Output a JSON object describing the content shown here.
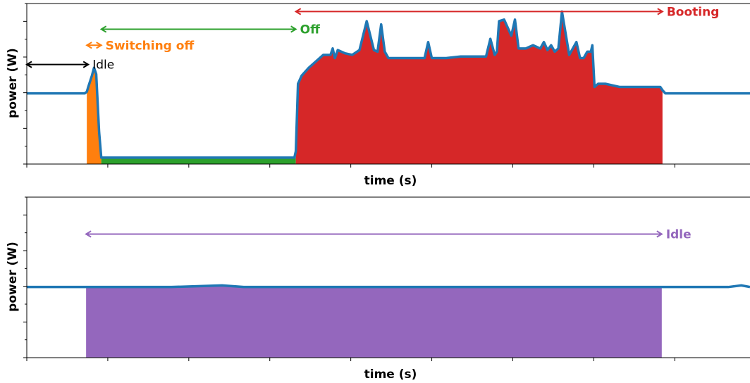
{
  "chart_data": [
    {
      "type": "line",
      "xlabel": "time (s)",
      "ylabel": "power (W)",
      "xlim": [
        0,
        100
      ],
      "ylim": [
        0,
        100
      ],
      "line_color": "#1f77b4",
      "series": [
        {
          "x": [
            0,
            2,
            4,
            6,
            8,
            8.3,
            8.5,
            9.0,
            9.3,
            9.6,
            10.0,
            10.3,
            12,
            20,
            30,
            37,
            37.2,
            37.5,
            38,
            39,
            40,
            41,
            42,
            42.3,
            42.6,
            43,
            44,
            45,
            46,
            47,
            48,
            48.5,
            49,
            49.5,
            50,
            52,
            55,
            55.5,
            56,
            58,
            60,
            62,
            63.5,
            64.1,
            64.7,
            65,
            65.3,
            66,
            67,
            67.5,
            68,
            69,
            70,
            71,
            71.5,
            72,
            72.5,
            73,
            73.5,
            74,
            75,
            75.5,
            76,
            76.5,
            77,
            77.5,
            78,
            78.2,
            78.5,
            79,
            80,
            82,
            84,
            86,
            87.6,
            87.9,
            88.3,
            89,
            92,
            95,
            98,
            100
          ],
          "y": [
            44,
            44,
            44,
            44,
            44,
            45,
            48,
            55,
            60,
            56,
            20,
            4,
            4,
            4,
            4,
            4,
            8,
            50,
            55,
            60,
            64,
            68,
            68,
            72,
            66,
            71,
            69,
            68,
            71,
            89,
            71,
            70,
            87,
            70,
            66,
            66,
            66,
            76,
            66,
            66,
            67,
            67,
            67,
            78,
            68,
            70,
            89,
            90,
            80,
            90,
            72,
            72,
            74,
            72,
            76,
            71,
            74,
            70,
            72,
            95,
            68,
            72,
            76,
            66,
            66,
            70,
            70,
            74,
            48,
            50,
            50,
            48,
            48,
            48,
            48,
            46,
            44,
            44,
            44,
            44,
            44,
            44
          ]
        }
      ],
      "fill_regions": [
        {
          "name": "Switching off",
          "x": [
            8.3,
            10.3
          ],
          "color": "#ff7f0e"
        },
        {
          "name": "Off",
          "x": [
            10.3,
            37.2
          ],
          "color": "#2ca02c"
        },
        {
          "name": "Booting",
          "x": [
            37.2,
            87.9
          ],
          "color": "#d62728"
        }
      ],
      "annotations": [
        {
          "text": "Idle",
          "x_from": 0,
          "x_to": 8.5,
          "y": 62,
          "color": "#000000"
        },
        {
          "text": "Switching off",
          "x_from": 8.3,
          "x_to": 10.3,
          "y": 74,
          "color": "#ff7f0e"
        },
        {
          "text": "Off",
          "x_from": 10.3,
          "x_to": 37.2,
          "y": 84,
          "color": "#2ca02c"
        },
        {
          "text": "Booting",
          "x_from": 37.2,
          "x_to": 87.9,
          "y": 95,
          "color": "#d62728"
        }
      ]
    },
    {
      "type": "line",
      "xlabel": "time (s)",
      "ylabel": "power (W)",
      "xlim": [
        0,
        100
      ],
      "ylim": [
        0,
        100
      ],
      "line_color": "#1f77b4",
      "series": [
        {
          "x": [
            0,
            3,
            6,
            8.2,
            12,
            20,
            27,
            30,
            40,
            50,
            60,
            70,
            80,
            87.8,
            92,
            97,
            98.8,
            100
          ],
          "y": [
            44,
            44,
            44,
            44,
            44,
            44,
            45,
            44,
            44,
            44,
            44,
            44,
            44,
            44,
            44,
            44,
            45,
            44
          ]
        }
      ],
      "fill_regions": [
        {
          "name": "Idle",
          "x": [
            8.2,
            87.8
          ],
          "color": "#9467bd"
        }
      ],
      "annotations": [
        {
          "text": "Idle",
          "x_from": 8.2,
          "x_to": 87.8,
          "y": 77,
          "color": "#9467bd"
        }
      ]
    }
  ]
}
